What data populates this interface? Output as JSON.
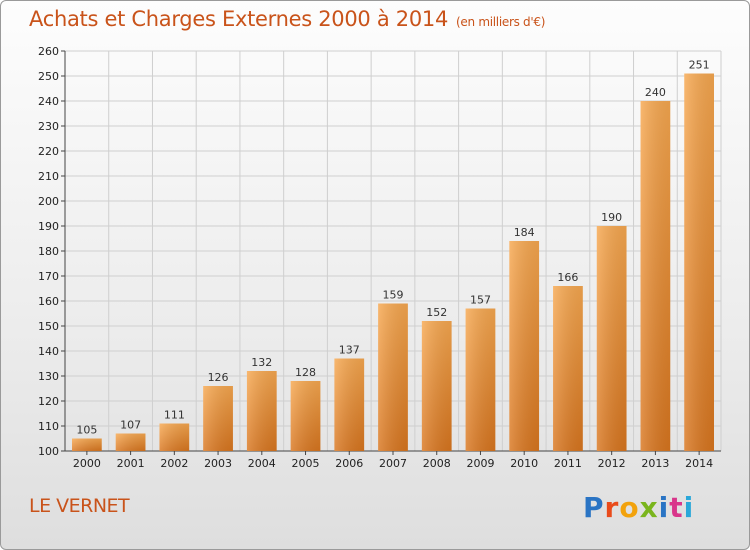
{
  "title": "Achats et Charges Externes 2000 à 2014",
  "unit": "(en milliers d'€)",
  "commune": "LE VERNET",
  "logo": {
    "text": "Proxiti",
    "colors": [
      "#2a74c4",
      "#e94b1b",
      "#f2a20c",
      "#7ab51d",
      "#2a74c4",
      "#d9368b",
      "#2aa7d9"
    ]
  },
  "colors": {
    "bar_light": "#f7a850",
    "bar_dark": "#dd7b22",
    "accent": "#c9531a"
  },
  "chart_data": {
    "type": "bar",
    "title": "Achats et Charges Externes 2000 à 2014",
    "subtitle": "(en milliers d'€)",
    "xlabel": "",
    "ylabel": "",
    "categories": [
      "2000",
      "2001",
      "2002",
      "2003",
      "2004",
      "2005",
      "2006",
      "2007",
      "2008",
      "2009",
      "2010",
      "2011",
      "2012",
      "2013",
      "2014"
    ],
    "values": [
      105,
      107,
      111,
      126,
      132,
      128,
      137,
      159,
      152,
      157,
      184,
      166,
      190,
      240,
      251
    ],
    "ylim": [
      100,
      260
    ],
    "yticks": [
      100,
      110,
      120,
      130,
      140,
      150,
      160,
      170,
      180,
      190,
      200,
      210,
      220,
      230,
      240,
      250,
      260
    ],
    "grid": true,
    "legend": "none"
  }
}
